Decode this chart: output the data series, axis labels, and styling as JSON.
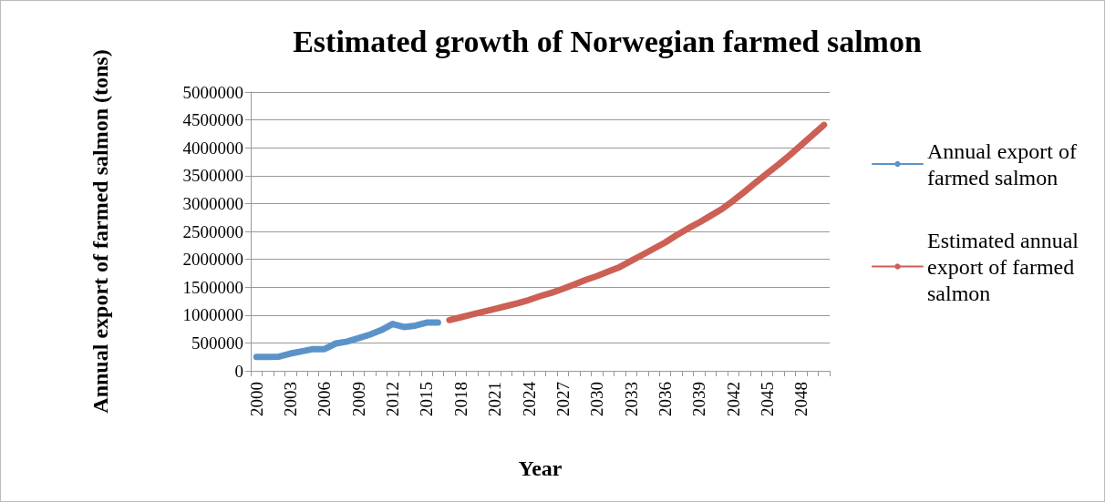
{
  "chart_data": {
    "type": "line",
    "title": "Estimated growth of Norwegian farmed salmon",
    "xlabel": "Year",
    "ylabel": "Annual export of farmed salmon (tons)",
    "categories": [
      "2000",
      null,
      null,
      "2003",
      null,
      null,
      "2006",
      null,
      null,
      "2009",
      null,
      null,
      "2012",
      null,
      null,
      "2015",
      null,
      null,
      "2018",
      null,
      null,
      "2021",
      null,
      null,
      "2024",
      null,
      null,
      "2027",
      null,
      null,
      "2030",
      null,
      null,
      "2033",
      null,
      null,
      "2036",
      null,
      null,
      "2039",
      null,
      null,
      "2042",
      null,
      null,
      "2045",
      null,
      null,
      "2048",
      null,
      null
    ],
    "series": [
      {
        "name": "Annual export of farmed salmon",
        "color": "#5b93c9",
        "values": [
          250000,
          250000,
          255000,
          310000,
          350000,
          390000,
          390000,
          490000,
          525000,
          585000,
          650000,
          730000,
          840000,
          785000,
          810000,
          865000,
          865000,
          null,
          null,
          null,
          null,
          null,
          null,
          null,
          null,
          null,
          null,
          null,
          null,
          null,
          null,
          null,
          null,
          null,
          null,
          null,
          null,
          null,
          null,
          null,
          null,
          null,
          null,
          null,
          null,
          null,
          null,
          null,
          null,
          null,
          null
        ]
      },
      {
        "name": "Estimated annual export of farmed salmon",
        "color": "#cc6055",
        "values": [
          null,
          null,
          null,
          null,
          null,
          null,
          null,
          null,
          null,
          null,
          null,
          null,
          null,
          null,
          null,
          null,
          null,
          910000,
          960000,
          1010000,
          1060000,
          1110000,
          1160000,
          1210000,
          1270000,
          1340000,
          1400000,
          1470000,
          1550000,
          1630000,
          1700000,
          1780000,
          1860000,
          1970000,
          2080000,
          2190000,
          2300000,
          2430000,
          2550000,
          2660000,
          2780000,
          2900000,
          3050000,
          3210000,
          3380000,
          3540000,
          3700000,
          3870000,
          4050000,
          4230000,
          4410000
        ]
      }
    ],
    "ylim": [
      0,
      5000000
    ],
    "yticks": [
      0,
      500000,
      1000000,
      1500000,
      2000000,
      2500000,
      3000000,
      3500000,
      4000000,
      4500000,
      5000000
    ],
    "grid": "y",
    "legend": "right",
    "marker": "none",
    "line_style": "solid"
  }
}
